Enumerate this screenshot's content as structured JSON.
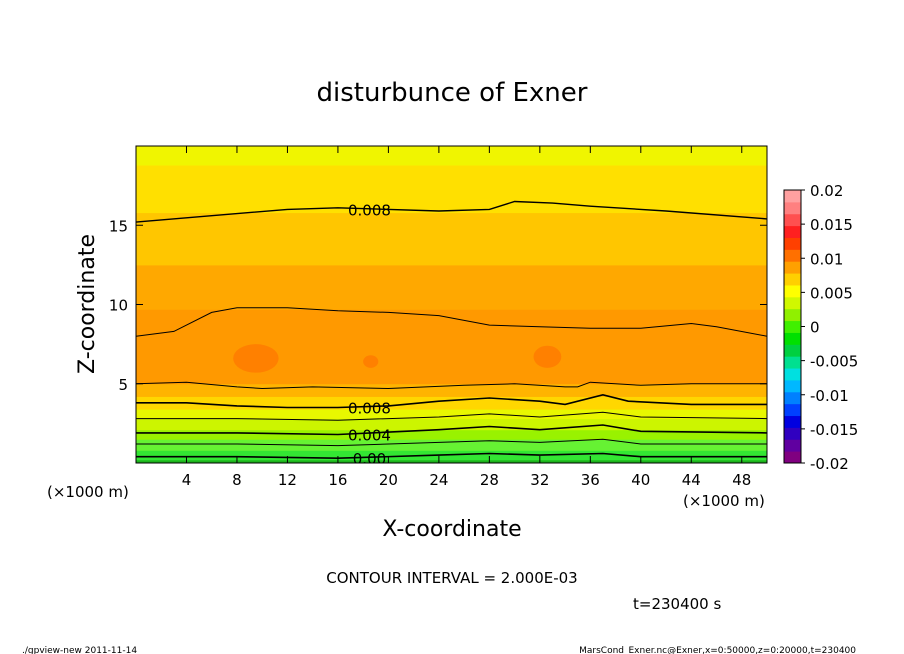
{
  "chart_data": {
    "type": "heatmap",
    "title": "disturbunce of Exner",
    "xlabel": "X-coordinate",
    "ylabel": "Z-coordinate",
    "x_unit_left": "(×1000 m)",
    "x_unit_right": "(×1000 m)",
    "xlim": [
      0,
      50
    ],
    "ylim": [
      0,
      20
    ],
    "x_ticks": [
      4,
      8,
      12,
      16,
      20,
      24,
      28,
      32,
      36,
      40,
      44,
      48
    ],
    "y_ticks": [
      5,
      10,
      15
    ],
    "contour_interval_text": "CONTOUR INTERVAL = 2.000E-03",
    "time_text": "t=230400 s",
    "contour_labels": [
      {
        "text": "0.008",
        "x": 18.5,
        "y": 16.0
      },
      {
        "text": "0.008",
        "x": 18.5,
        "y": 3.5
      },
      {
        "text": "0.004",
        "x": 18.5,
        "y": 1.8
      },
      {
        "text": "0.00",
        "x": 18.5,
        "y": 0.3
      }
    ],
    "bands": [
      {
        "z_low": 0.0,
        "z_high": 0.2,
        "value": -0.0005,
        "color": "#1db31d"
      },
      {
        "z_low": 0.2,
        "z_high": 0.8,
        "value": 0.0005,
        "color": "#33e633"
      },
      {
        "z_low": 0.8,
        "z_high": 1.5,
        "value": 0.0015,
        "color": "#66f233"
      },
      {
        "z_low": 1.5,
        "z_high": 2.1,
        "value": 0.0025,
        "color": "#99f200"
      },
      {
        "z_low": 2.1,
        "z_high": 2.8,
        "value": 0.0035,
        "color": "#ccf500"
      },
      {
        "z_low": 2.8,
        "z_high": 3.4,
        "value": 0.0045,
        "color": "#e8f800"
      },
      {
        "z_low": 3.4,
        "z_high": 4.2,
        "value": 0.0065,
        "color": "#ffd700"
      },
      {
        "z_low": 4.2,
        "z_high": 5.0,
        "value": 0.0085,
        "color": "#ffb400"
      },
      {
        "z_low": 5.0,
        "z_high": 9.7,
        "value": 0.0105,
        "color": "#ff9900"
      },
      {
        "z_low": 9.7,
        "z_high": 12.5,
        "value": 0.0095,
        "color": "#ffa800"
      },
      {
        "z_low": 12.5,
        "z_high": 15.8,
        "value": 0.0085,
        "color": "#ffc600"
      },
      {
        "z_low": 15.8,
        "z_high": 18.8,
        "value": 0.0075,
        "color": "#ffe000"
      },
      {
        "z_low": 18.8,
        "z_high": 20.0,
        "value": 0.0065,
        "color": "#f0f500"
      }
    ],
    "blobs": [
      {
        "x": 9.5,
        "z": 6.6,
        "rx": 1.8,
        "rz": 0.9,
        "color": "#ff8000"
      },
      {
        "x": 18.6,
        "z": 6.4,
        "rx": 0.6,
        "rz": 0.4,
        "color": "#ff8000"
      },
      {
        "x": 32.6,
        "z": 6.7,
        "rx": 1.1,
        "rz": 0.7,
        "color": "#ff8000"
      }
    ],
    "contours": [
      {
        "points": [
          [
            0,
            15.2
          ],
          [
            6,
            15.6
          ],
          [
            12,
            16.0
          ],
          [
            16,
            16.1
          ],
          [
            24,
            15.9
          ],
          [
            28,
            16.0
          ],
          [
            30,
            16.5
          ],
          [
            33,
            16.4
          ],
          [
            36,
            16.2
          ],
          [
            42,
            15.9
          ],
          [
            50,
            15.4
          ]
        ],
        "width": 1.4
      },
      {
        "points": [
          [
            0,
            8.0
          ],
          [
            3,
            8.3
          ],
          [
            6,
            9.5
          ],
          [
            8,
            9.8
          ],
          [
            12,
            9.8
          ],
          [
            16,
            9.6
          ],
          [
            20,
            9.5
          ],
          [
            24,
            9.3
          ],
          [
            28,
            8.7
          ],
          [
            32,
            8.6
          ],
          [
            36,
            8.5
          ],
          [
            40,
            8.5
          ],
          [
            44,
            8.8
          ],
          [
            46,
            8.6
          ],
          [
            50,
            8.0
          ]
        ],
        "width": 1.0
      },
      {
        "points": [
          [
            0,
            5.0
          ],
          [
            4,
            5.1
          ],
          [
            8,
            4.8
          ],
          [
            10,
            4.7
          ],
          [
            14,
            4.8
          ],
          [
            20,
            4.7
          ],
          [
            26,
            4.9
          ],
          [
            30,
            5.0
          ],
          [
            34,
            4.8
          ],
          [
            35,
            4.8
          ],
          [
            36,
            5.1
          ],
          [
            40,
            4.9
          ],
          [
            44,
            5.0
          ],
          [
            50,
            5.0
          ]
        ],
        "width": 1.0
      },
      {
        "points": [
          [
            0,
            3.8
          ],
          [
            4,
            3.8
          ],
          [
            8,
            3.6
          ],
          [
            12,
            3.5
          ],
          [
            16,
            3.5
          ],
          [
            20,
            3.6
          ],
          [
            24,
            3.9
          ],
          [
            28,
            4.1
          ],
          [
            32,
            3.9
          ],
          [
            34,
            3.7
          ],
          [
            37,
            4.3
          ],
          [
            39,
            3.9
          ],
          [
            44,
            3.7
          ],
          [
            50,
            3.7
          ]
        ],
        "width": 1.6
      },
      {
        "points": [
          [
            0,
            2.8
          ],
          [
            8,
            2.8
          ],
          [
            16,
            2.7
          ],
          [
            24,
            2.9
          ],
          [
            28,
            3.1
          ],
          [
            32,
            2.9
          ],
          [
            37,
            3.2
          ],
          [
            40,
            2.9
          ],
          [
            50,
            2.8
          ]
        ],
        "width": 1.0
      },
      {
        "points": [
          [
            0,
            1.9
          ],
          [
            8,
            1.9
          ],
          [
            16,
            1.8
          ],
          [
            24,
            2.1
          ],
          [
            28,
            2.3
          ],
          [
            32,
            2.1
          ],
          [
            37,
            2.4
          ],
          [
            40,
            2.0
          ],
          [
            50,
            1.9
          ]
        ],
        "width": 1.6
      },
      {
        "points": [
          [
            0,
            1.2
          ],
          [
            8,
            1.2
          ],
          [
            16,
            1.1
          ],
          [
            24,
            1.3
          ],
          [
            28,
            1.4
          ],
          [
            32,
            1.3
          ],
          [
            37,
            1.5
          ],
          [
            40,
            1.2
          ],
          [
            50,
            1.2
          ]
        ],
        "width": 1.0
      },
      {
        "points": [
          [
            0,
            0.4
          ],
          [
            8,
            0.4
          ],
          [
            16,
            0.3
          ],
          [
            24,
            0.5
          ],
          [
            28,
            0.6
          ],
          [
            32,
            0.5
          ],
          [
            37,
            0.6
          ],
          [
            40,
            0.4
          ],
          [
            50,
            0.4
          ]
        ],
        "width": 1.6
      }
    ],
    "colorbar": {
      "min": -0.02,
      "max": 0.02,
      "labels": [
        "0.02",
        "0.015",
        "0.01",
        "0.005",
        "0",
        "-0.005",
        "-0.01",
        "-0.015",
        "-0.02"
      ],
      "label_values": [
        0.02,
        0.015,
        0.01,
        0.005,
        0,
        -0.005,
        -0.01,
        -0.015,
        -0.02
      ],
      "colors": [
        "#800080",
        "#6000a0",
        "#3000c0",
        "#0000e0",
        "#0040ff",
        "#0080ff",
        "#00b8ff",
        "#00e0e0",
        "#00e090",
        "#00d040",
        "#00e000",
        "#40f000",
        "#90f000",
        "#d0f800",
        "#ffff00",
        "#ffd000",
        "#ffa000",
        "#ff7000",
        "#ff4000",
        "#ff2020",
        "#ff5050",
        "#ff8080",
        "#ffa0a0"
      ]
    }
  },
  "footer": {
    "left": "./gpview-new   2011-11-14",
    "right": "MarsCond_Exner.nc@Exner,x=0:50000,z=0:20000,t=230400"
  }
}
